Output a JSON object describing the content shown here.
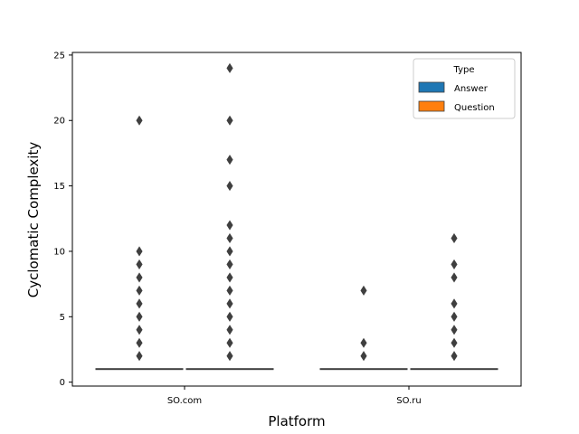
{
  "chart_data": {
    "type": "box",
    "xlabel": "Platform",
    "ylabel": "Cyclomatic Complexity",
    "categories": [
      "SO.com",
      "SO.ru"
    ],
    "ylim": [
      -0.3,
      25.2
    ],
    "yticks": [
      0,
      5,
      10,
      15,
      20,
      25
    ],
    "grid": false,
    "legend": {
      "title": "Type",
      "placement": "top-right"
    },
    "series": [
      {
        "name": "Answer",
        "color": "#1f77b4",
        "boxes": [
          {
            "category": "SO.com",
            "q1": 1,
            "median": 1,
            "q3": 1,
            "whisker_low": 1,
            "whisker_high": 1,
            "outliers": [
              2,
              3,
              4,
              5,
              6,
              7,
              8,
              9,
              10,
              20
            ]
          },
          {
            "category": "SO.ru",
            "q1": 1,
            "median": 1,
            "q3": 1,
            "whisker_low": 1,
            "whisker_high": 1,
            "outliers": [
              2,
              3,
              7
            ]
          }
        ]
      },
      {
        "name": "Question",
        "color": "#ff7f0e",
        "boxes": [
          {
            "category": "SO.com",
            "q1": 1,
            "median": 1,
            "q3": 1,
            "whisker_low": 1,
            "whisker_high": 1,
            "outliers": [
              2,
              3,
              4,
              5,
              6,
              7,
              8,
              9,
              10,
              11,
              12,
              15,
              17,
              20,
              24
            ]
          },
          {
            "category": "SO.ru",
            "q1": 1,
            "median": 1,
            "q3": 1,
            "whisker_low": 1,
            "whisker_high": 1,
            "outliers": [
              2,
              3,
              4,
              5,
              6,
              8,
              9,
              11
            ]
          }
        ]
      }
    ]
  }
}
